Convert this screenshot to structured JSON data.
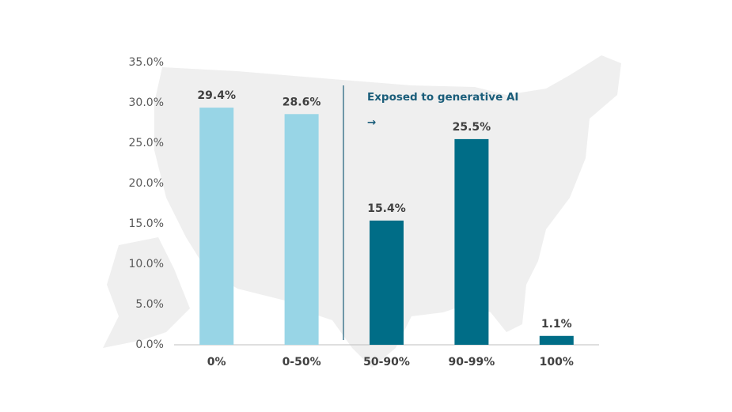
{
  "chart_data": {
    "type": "bar",
    "categories": [
      "0%",
      "0-50%",
      "50-90%",
      "90-99%",
      "100%"
    ],
    "values": [
      29.4,
      28.6,
      15.4,
      25.5,
      1.1
    ],
    "value_labels": [
      "29.4%",
      "28.6%",
      "15.4%",
      "25.5%",
      "1.1%"
    ],
    "colors": [
      "#98d5e6",
      "#98d5e6",
      "#006d87",
      "#006d87",
      "#006d87"
    ],
    "ylim": [
      0,
      35
    ],
    "yticks": [
      {
        "value": 0,
        "label": "0.0%"
      },
      {
        "value": 5,
        "label": "5.0%"
      },
      {
        "value": 10,
        "label": "10.0%"
      },
      {
        "value": 15,
        "label": "15.0%"
      },
      {
        "value": 20,
        "label": "20.0%"
      },
      {
        "value": 25,
        "label": "25.0%"
      },
      {
        "value": 30,
        "label": "30.0%"
      },
      {
        "value": 35,
        "label": "35.0%"
      }
    ],
    "annotation": "Exposed to generative AI",
    "annotation_arrow": "→",
    "grid": false
  }
}
